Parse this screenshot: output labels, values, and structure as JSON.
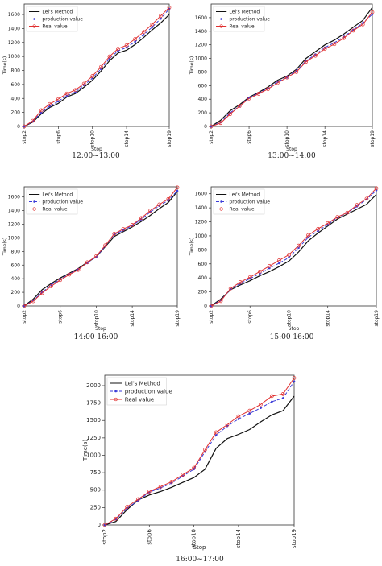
{
  "chart_data": [
    {
      "type": "line",
      "caption": "12:00~13:00",
      "xlabel": "Stop",
      "ylabel": "Time(s)",
      "ylim": [
        0,
        1750
      ],
      "yticks": [
        0,
        200,
        400,
        600,
        800,
        1000,
        1200,
        1400,
        1600
      ],
      "xticks": [
        "stop2",
        "stop6",
        "stop10",
        "stop14",
        "stop19"
      ],
      "legend": "top-left",
      "categories": [
        "stop2",
        "stop3",
        "stop4",
        "stop5",
        "stop6",
        "stop7",
        "stop8",
        "stop9",
        "stop10",
        "stop11",
        "stop12",
        "stop13",
        "stop14",
        "stop15",
        "stop16",
        "stop17",
        "stop18",
        "stop19"
      ],
      "series": [
        {
          "name": "Lei's Method",
          "color": "#111111",
          "marker": "none",
          "dash": "",
          "values": [
            0,
            60,
            180,
            270,
            330,
            420,
            470,
            560,
            660,
            790,
            940,
            1050,
            1090,
            1170,
            1270,
            1380,
            1480,
            1600
          ]
        },
        {
          "name": "production value",
          "color": "#3a3ad8",
          "marker": "dot",
          "dash": "4,2",
          "values": [
            0,
            70,
            200,
            290,
            360,
            440,
            490,
            590,
            690,
            820,
            970,
            1080,
            1130,
            1210,
            1310,
            1420,
            1540,
            1680
          ]
        },
        {
          "name": "Real value",
          "color": "#e03030",
          "marker": "circle",
          "dash": "",
          "values": [
            0,
            80,
            230,
            320,
            390,
            470,
            520,
            610,
            720,
            850,
            1000,
            1110,
            1160,
            1250,
            1350,
            1460,
            1580,
            1700
          ]
        }
      ]
    },
    {
      "type": "line",
      "caption": "13:00~14:00",
      "xlabel": "Stop",
      "ylabel": "Time(s)",
      "ylim": [
        0,
        1800
      ],
      "yticks": [
        0,
        200,
        400,
        600,
        800,
        1000,
        1200,
        1400,
        1600
      ],
      "xticks": [
        "stop2",
        "stop6",
        "stop10",
        "stop14",
        "stop19"
      ],
      "legend": "top-left",
      "categories": [
        "stop2",
        "stop3",
        "stop4",
        "stop5",
        "stop6",
        "stop7",
        "stop8",
        "stop9",
        "stop10",
        "stop11",
        "stop12",
        "stop13",
        "stop14",
        "stop15",
        "stop16",
        "stop17",
        "stop18",
        "stop19"
      ],
      "series": [
        {
          "name": "Lei's Method",
          "color": "#111111",
          "marker": "none",
          "dash": "",
          "values": [
            0,
            90,
            230,
            320,
            430,
            500,
            580,
            680,
            740,
            840,
            1000,
            1100,
            1200,
            1270,
            1360,
            1460,
            1560,
            1750
          ]
        },
        {
          "name": "production value",
          "color": "#3a3ad8",
          "marker": "dot",
          "dash": "4,2",
          "values": [
            0,
            60,
            200,
            300,
            420,
            490,
            560,
            660,
            720,
            820,
            960,
            1060,
            1160,
            1230,
            1320,
            1420,
            1520,
            1650
          ]
        },
        {
          "name": "Real value",
          "color": "#e03030",
          "marker": "circle",
          "dash": "",
          "values": [
            0,
            50,
            180,
            300,
            410,
            480,
            550,
            640,
            720,
            800,
            950,
            1040,
            1140,
            1210,
            1300,
            1410,
            1500,
            1680
          ]
        }
      ]
    },
    {
      "type": "line",
      "caption": "14:00 16:00",
      "xlabel": "Stop",
      "ylabel": "Time(s)",
      "ylim": [
        0,
        1750
      ],
      "yticks": [
        0,
        200,
        400,
        600,
        800,
        1000,
        1200,
        1400,
        1600
      ],
      "xticks": [
        "stop2",
        "stop6",
        "stop10",
        "stop14",
        "stop19"
      ],
      "legend": "top-left",
      "categories": [
        "stop2",
        "stop3",
        "stop4",
        "stop5",
        "stop6",
        "stop7",
        "stop8",
        "stop9",
        "stop10",
        "stop11",
        "stop12",
        "stop13",
        "stop14",
        "stop15",
        "stop16",
        "stop17",
        "stop18",
        "stop19"
      ],
      "series": [
        {
          "name": "Lei's Method",
          "color": "#111111",
          "marker": "none",
          "dash": "",
          "values": [
            0,
            100,
            240,
            330,
            410,
            480,
            550,
            640,
            720,
            870,
            1020,
            1090,
            1160,
            1240,
            1330,
            1430,
            1520,
            1680
          ]
        },
        {
          "name": "production value",
          "color": "#3a3ad8",
          "marker": "dot",
          "dash": "4,2",
          "values": [
            0,
            80,
            200,
            310,
            390,
            470,
            540,
            630,
            720,
            880,
            1050,
            1110,
            1180,
            1270,
            1380,
            1470,
            1550,
            1690
          ]
        },
        {
          "name": "Real value",
          "color": "#e03030",
          "marker": "circle",
          "dash": "",
          "values": [
            0,
            70,
            190,
            290,
            380,
            460,
            530,
            640,
            730,
            890,
            1060,
            1130,
            1190,
            1290,
            1400,
            1490,
            1570,
            1740
          ]
        }
      ]
    },
    {
      "type": "line",
      "caption": "15:00 16:00",
      "xlabel": "Stop",
      "ylabel": "Time(s)",
      "ylim": [
        0,
        1700
      ],
      "yticks": [
        0,
        200,
        400,
        600,
        800,
        1000,
        1200,
        1400,
        1600
      ],
      "xticks": [
        "stop2",
        "stop6",
        "stop10",
        "stop14",
        "stop19"
      ],
      "legend": "top-left",
      "categories": [
        "stop2",
        "stop3",
        "stop4",
        "stop5",
        "stop6",
        "stop7",
        "stop8",
        "stop9",
        "stop10",
        "stop11",
        "stop12",
        "stop13",
        "stop14",
        "stop15",
        "stop16",
        "stop17",
        "stop18",
        "stop19"
      ],
      "series": [
        {
          "name": "Lei's Method",
          "color": "#111111",
          "marker": "none",
          "dash": "",
          "values": [
            0,
            100,
            230,
            300,
            360,
            430,
            490,
            560,
            640,
            770,
            930,
            1040,
            1140,
            1240,
            1310,
            1380,
            1450,
            1590
          ]
        },
        {
          "name": "production value",
          "color": "#3a3ad8",
          "marker": "dot",
          "dash": "4,2",
          "values": [
            0,
            80,
            240,
            320,
            390,
            460,
            540,
            610,
            690,
            830,
            980,
            1070,
            1160,
            1260,
            1330,
            1420,
            1520,
            1650
          ]
        },
        {
          "name": "Real value",
          "color": "#e03030",
          "marker": "circle",
          "dash": "",
          "values": [
            0,
            70,
            250,
            340,
            410,
            490,
            570,
            650,
            730,
            860,
            1010,
            1100,
            1180,
            1270,
            1330,
            1440,
            1530,
            1680
          ]
        }
      ]
    },
    {
      "type": "line",
      "caption": "16:00~17:00",
      "xlabel": "Stop",
      "ylabel": "Time(s)",
      "ylim": [
        0,
        2150
      ],
      "yticks": [
        0,
        250,
        500,
        750,
        1000,
        1250,
        1500,
        1750,
        2000
      ],
      "xticks": [
        "stop2",
        "stop6",
        "stop10",
        "stop14",
        "stop19"
      ],
      "legend": "top-left",
      "categories": [
        "stop2",
        "stop3",
        "stop4",
        "stop5",
        "stop6",
        "stop7",
        "stop8",
        "stop9",
        "stop10",
        "stop11",
        "stop12",
        "stop13",
        "stop14",
        "stop15",
        "stop16",
        "stop17",
        "stop18",
        "stop19"
      ],
      "series": [
        {
          "name": "Lei's Method",
          "color": "#111111",
          "marker": "none",
          "dash": "",
          "values": [
            0,
            50,
            220,
            360,
            430,
            480,
            540,
            610,
            680,
            800,
            1100,
            1240,
            1300,
            1370,
            1480,
            1580,
            1640,
            1850
          ]
        },
        {
          "name": "production value",
          "color": "#3a3ad8",
          "marker": "dot",
          "dash": "4,2",
          "values": [
            0,
            80,
            240,
            350,
            470,
            530,
            600,
            700,
            800,
            1050,
            1290,
            1420,
            1520,
            1600,
            1680,
            1770,
            1820,
            2060
          ]
        },
        {
          "name": "Real value",
          "color": "#e03030",
          "marker": "circle",
          "dash": "",
          "values": [
            0,
            90,
            260,
            370,
            480,
            550,
            620,
            720,
            820,
            1080,
            1330,
            1440,
            1560,
            1640,
            1730,
            1850,
            1880,
            2110
          ]
        }
      ]
    }
  ]
}
